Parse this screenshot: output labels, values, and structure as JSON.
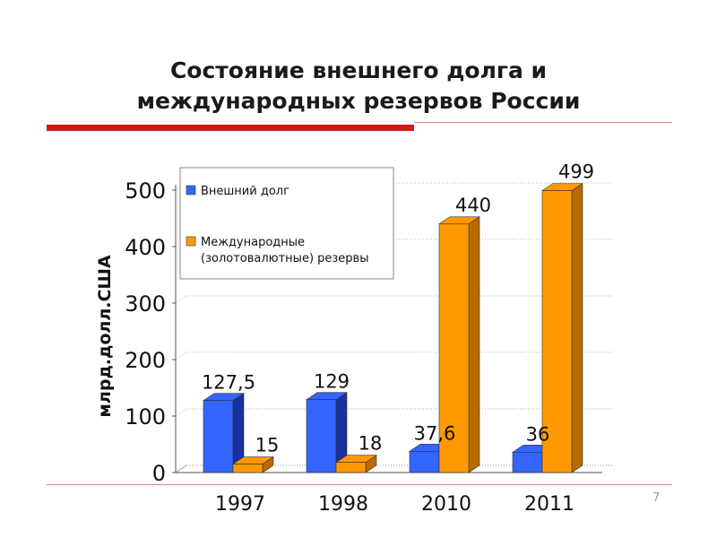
{
  "title": {
    "line1": "Состояние внешнего долга и",
    "line2": "международных резервов России"
  },
  "page_number": "7",
  "colors": {
    "title_rule": "#cc1b1b",
    "debt_front": "#3366ff",
    "debt_side": "#1a2fa0",
    "reserves_front": "#ff9900",
    "reserves_side": "#b86a00"
  },
  "chart_data": {
    "type": "bar",
    "categories": [
      "1997",
      "1998",
      "2010",
      "2011"
    ],
    "series": [
      {
        "name": "Внешний долг",
        "values": [
          127.5,
          129,
          37.6,
          36
        ],
        "labels": [
          "127,5",
          "129",
          "37,6",
          "36"
        ]
      },
      {
        "name": "Международные (золотовалютные) резервы",
        "values": [
          15,
          18,
          440,
          499
        ],
        "labels": [
          "15",
          "18",
          "440",
          "499"
        ]
      }
    ],
    "legend_lines": [
      [
        "Внешний долг"
      ],
      [
        "Международные",
        "(золотовалютные) резервы"
      ]
    ],
    "ylabel": "млрд.долл.США",
    "ylim": [
      0,
      500
    ],
    "yticks": [
      0,
      100,
      200,
      300,
      400,
      500
    ],
    "legend_position": "top-left",
    "three_d": true,
    "grid": true
  }
}
